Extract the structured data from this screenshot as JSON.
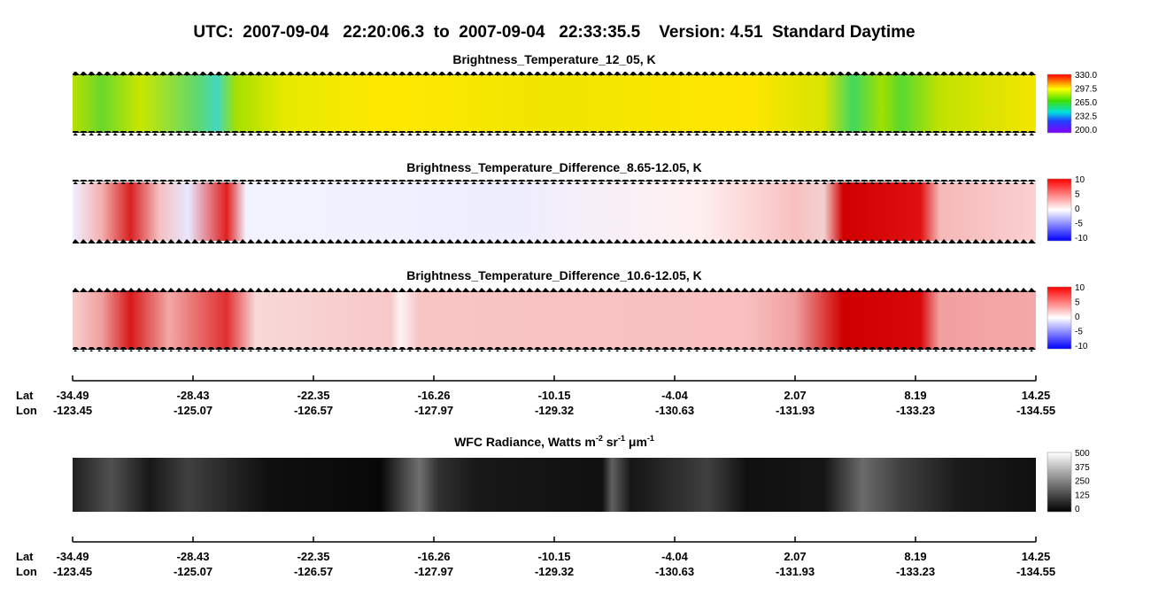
{
  "header": {
    "title": "UTC:  2007-09-04   22:20:06.3  to  2007-09-04   22:33:35.5    Version: 4.51  Standard Daytime"
  },
  "panels": [
    {
      "title": [
        "Brightness_Temperature_12_05, K"
      ],
      "colorbar_ticks": [
        "330.0",
        "297.5",
        "265.0",
        "232.5",
        "200.0"
      ]
    },
    {
      "title": [
        "Brightness_Temperature_Difference_8.65-12.05, K"
      ],
      "colorbar_ticks": [
        "10",
        "5",
        "0",
        "-5",
        "-10"
      ]
    },
    {
      "title": [
        "Brightness_Temperature_Difference_10.6-12.05, K"
      ],
      "colorbar_ticks": [
        "10",
        "5",
        "0",
        "-5",
        "-10"
      ]
    },
    {
      "title": [
        "WFC Radiance, Watts m",
        "-2",
        " sr",
        "-1",
        " μm",
        "-1"
      ],
      "colorbar_ticks": [
        "500",
        "375",
        "250",
        "125",
        "0"
      ]
    }
  ],
  "axis": {
    "lat_label": "Lat",
    "lon_label": "Lon",
    "lat": [
      "-34.49",
      "-28.43",
      "-22.35",
      "-16.26",
      "-10.15",
      "-4.04",
      "2.07",
      "8.19",
      "14.25"
    ],
    "lon": [
      "-123.45",
      "-125.07",
      "-126.57",
      "-127.97",
      "-129.32",
      "-130.63",
      "-131.93",
      "-133.23",
      "-134.55"
    ]
  }
}
